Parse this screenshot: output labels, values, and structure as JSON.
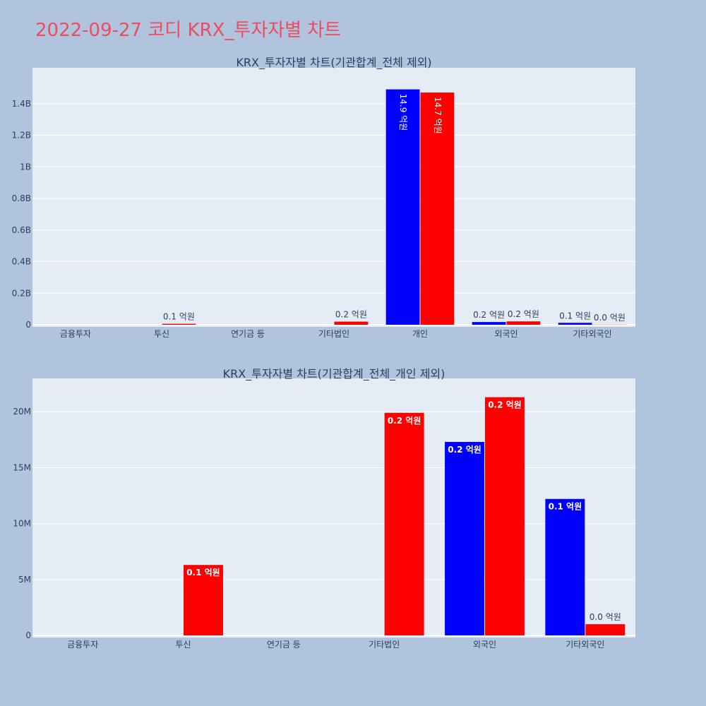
{
  "page": {
    "title": "2022-09-27 코디 KRX_투자자별 차트"
  },
  "colors": {
    "background": "#b0c4de",
    "plot_bg": "#e5ecf6",
    "buy": "#0000ff",
    "sell": "#ff0000",
    "title": "#ee4b5f",
    "text": "#2a3f5f"
  },
  "chart_data": [
    {
      "type": "bar",
      "title": "KRX_투자자별 차트(기관합계_전체 제외)",
      "categories": [
        "금융투자",
        "투신",
        "연기금 등",
        "기타법인",
        "개인",
        "외국인",
        "기타외국인"
      ],
      "series": [
        {
          "color": "#0000ff",
          "values": [
            0,
            0,
            0,
            0,
            1490000000,
            17300000,
            12200000
          ],
          "labels": [
            "",
            "",
            "",
            "",
            "14.9 억원",
            "0.2 억원",
            "0.1 억원"
          ]
        },
        {
          "color": "#ff0000",
          "values": [
            0,
            6300000,
            0,
            19900000,
            1470000000,
            21300000,
            1000000
          ],
          "labels": [
            "",
            "0.1 억원",
            "",
            "0.2 억원",
            "14.7 억원",
            "0.2 억원",
            "0.0 억원"
          ]
        }
      ],
      "ylim": [
        0,
        1600000000.0
      ],
      "yticks": [
        0,
        200000000.0,
        400000000.0,
        600000000.0,
        800000000.0,
        1000000000.0,
        1200000000.0,
        1400000000.0
      ],
      "ytick_labels": [
        "0",
        "0.2B",
        "0.4B",
        "0.6B",
        "0.8B",
        "1B",
        "1.2B",
        "1.4B"
      ],
      "grid": true,
      "xlabel": "",
      "ylabel": ""
    },
    {
      "type": "bar",
      "title": "KRX_투자자별 차트(기관합계_전체_개인 제외)",
      "categories": [
        "금융투자",
        "투신",
        "연기금 등",
        "기타법인",
        "외국인",
        "기타외국인"
      ],
      "series": [
        {
          "color": "#0000ff",
          "values": [
            0,
            0,
            0,
            0,
            17300000,
            12200000
          ],
          "labels": [
            "",
            "",
            "",
            "",
            "0.2 억원",
            "0.1 억원"
          ]
        },
        {
          "color": "#ff0000",
          "values": [
            0,
            6300000,
            0,
            19900000,
            21300000,
            1000000
          ],
          "labels": [
            "",
            "0.1 억원",
            "",
            "0.2 억원",
            "0.2 억원",
            "0.0 억원"
          ]
        }
      ],
      "ylim": [
        0,
        22600000
      ],
      "yticks": [
        0,
        5000000,
        10000000,
        15000000,
        20000000
      ],
      "ytick_labels": [
        "0",
        "5M",
        "10M",
        "15M",
        "20M"
      ],
      "grid": true,
      "xlabel": "",
      "ylabel": ""
    }
  ]
}
